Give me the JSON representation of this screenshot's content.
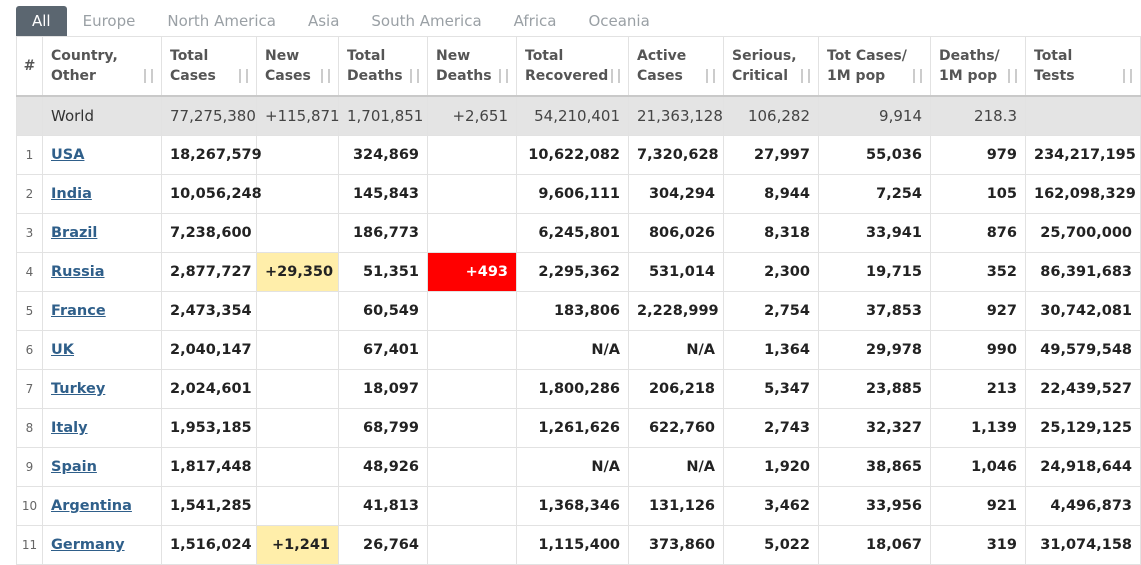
{
  "tabs": [
    "All",
    "Europe",
    "North America",
    "Asia",
    "South America",
    "Africa",
    "Oceania"
  ],
  "table": {
    "columns": [
      [
        "#"
      ],
      [
        "Country,",
        "Other"
      ],
      [
        "Total",
        "Cases"
      ],
      [
        "New",
        "Cases"
      ],
      [
        "Total",
        "Deaths"
      ],
      [
        "New",
        "Deaths"
      ],
      [
        "Total",
        "Recovered"
      ],
      [
        "Active",
        "Cases"
      ],
      [
        "Serious,",
        "Critical"
      ],
      [
        "Tot Cases/",
        "1M pop"
      ],
      [
        "Deaths/",
        "1M pop"
      ],
      [
        "Total",
        "Tests"
      ]
    ],
    "world": [
      null,
      "World",
      "77,275,380",
      "+115,871",
      "1,701,851",
      "+2,651",
      "54,210,401",
      "21,363,128",
      "106,282",
      "9,914",
      "218.3",
      null
    ],
    "rows": [
      {
        "cells": [
          1,
          "USA",
          "18,267,579",
          null,
          "324,869",
          null,
          "10,622,082",
          "7,320,628",
          "27,997",
          "55,036",
          "979",
          "234,217,195"
        ]
      },
      {
        "cells": [
          2,
          "India",
          "10,056,248",
          null,
          "145,843",
          null,
          "9,606,111",
          "304,294",
          "8,944",
          "7,254",
          "105",
          "162,098,329"
        ]
      },
      {
        "cells": [
          3,
          "Brazil",
          "7,238,600",
          null,
          "186,773",
          null,
          "6,245,801",
          "806,026",
          "8,318",
          "33,941",
          "876",
          "25,700,000"
        ]
      },
      {
        "cells": [
          4,
          "Russia",
          "2,877,727",
          "+29,350",
          "51,351",
          "+493",
          "2,295,362",
          "531,014",
          "2,300",
          "19,715",
          "352",
          "86,391,683"
        ],
        "new_cases_bg": "#ffeeaa",
        "new_deaths_bg": "#ff0000"
      },
      {
        "cells": [
          5,
          "France",
          "2,473,354",
          null,
          "60,549",
          null,
          "183,806",
          "2,228,999",
          "2,754",
          "37,853",
          "927",
          "30,742,081"
        ]
      },
      {
        "cells": [
          6,
          "UK",
          "2,040,147",
          null,
          "67,401",
          null,
          "N/A",
          "N/A",
          "1,364",
          "29,978",
          "990",
          "49,579,548"
        ]
      },
      {
        "cells": [
          7,
          "Turkey",
          "2,024,601",
          null,
          "18,097",
          null,
          "1,800,286",
          "206,218",
          "5,347",
          "23,885",
          "213",
          "22,439,527"
        ]
      },
      {
        "cells": [
          8,
          "Italy",
          "1,953,185",
          null,
          "68,799",
          null,
          "1,261,626",
          "622,760",
          "2,743",
          "32,327",
          "1,139",
          "25,129,125"
        ]
      },
      {
        "cells": [
          9,
          "Spain",
          "1,817,448",
          null,
          "48,926",
          null,
          "N/A",
          "N/A",
          "1,920",
          "38,865",
          "1,046",
          "24,918,644"
        ]
      },
      {
        "cells": [
          10,
          "Argentina",
          "1,541,285",
          null,
          "41,813",
          null,
          "1,368,346",
          "131,126",
          "3,462",
          "33,956",
          "921",
          "4,496,873"
        ]
      },
      {
        "cells": [
          11,
          "Germany",
          "1,516,024",
          "+1,241",
          "26,764",
          null,
          "1,115,400",
          "373,860",
          "5,022",
          "18,067",
          "319",
          "31,074,158"
        ],
        "new_cases_bg": "#ffeeaa"
      }
    ]
  }
}
